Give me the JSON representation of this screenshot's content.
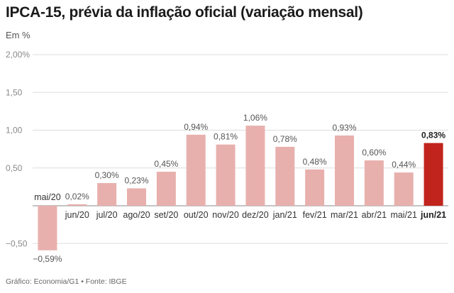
{
  "header": {
    "title": "IPCA-15, prévia da inflação oficial (variação mensal)",
    "subtitle": "Em %",
    "source": "Gráfico: Economia/G1 • Fonte: IBGE"
  },
  "colors": {
    "bar": "#e8b0ad",
    "highlight": "#c0241c"
  },
  "chart_data": {
    "type": "bar",
    "categories": [
      "mai/20",
      "jun/20",
      "jul/20",
      "ago/20",
      "set/20",
      "out/20",
      "nov/20",
      "dez/20",
      "jan/21",
      "fev/21",
      "mar/21",
      "abr/21",
      "mai/21",
      "jun/21"
    ],
    "values": [
      -0.59,
      0.02,
      0.3,
      0.23,
      0.45,
      0.94,
      0.81,
      1.06,
      0.78,
      0.48,
      0.93,
      0.6,
      0.44,
      0.83
    ],
    "data_labels": [
      "−0,59%",
      "0,02%",
      "0,30%",
      "0,23%",
      "0,45%",
      "0,94%",
      "0,81%",
      "1,06%",
      "0,78%",
      "0,48%",
      "0,93%",
      "0,60%",
      "0,44%",
      "0,83%"
    ],
    "highlight_index": 13,
    "ylim": [
      -0.6,
      2.0
    ],
    "yticks": [
      {
        "value": 2.0,
        "label": "2,00%"
      },
      {
        "value": 1.5,
        "label": "1,50"
      },
      {
        "value": 1.0,
        "label": "1,00"
      },
      {
        "value": 0.5,
        "label": "0,50"
      },
      {
        "value": -0.5,
        "label": "−0,50"
      }
    ],
    "grid": true,
    "legend": "none"
  }
}
